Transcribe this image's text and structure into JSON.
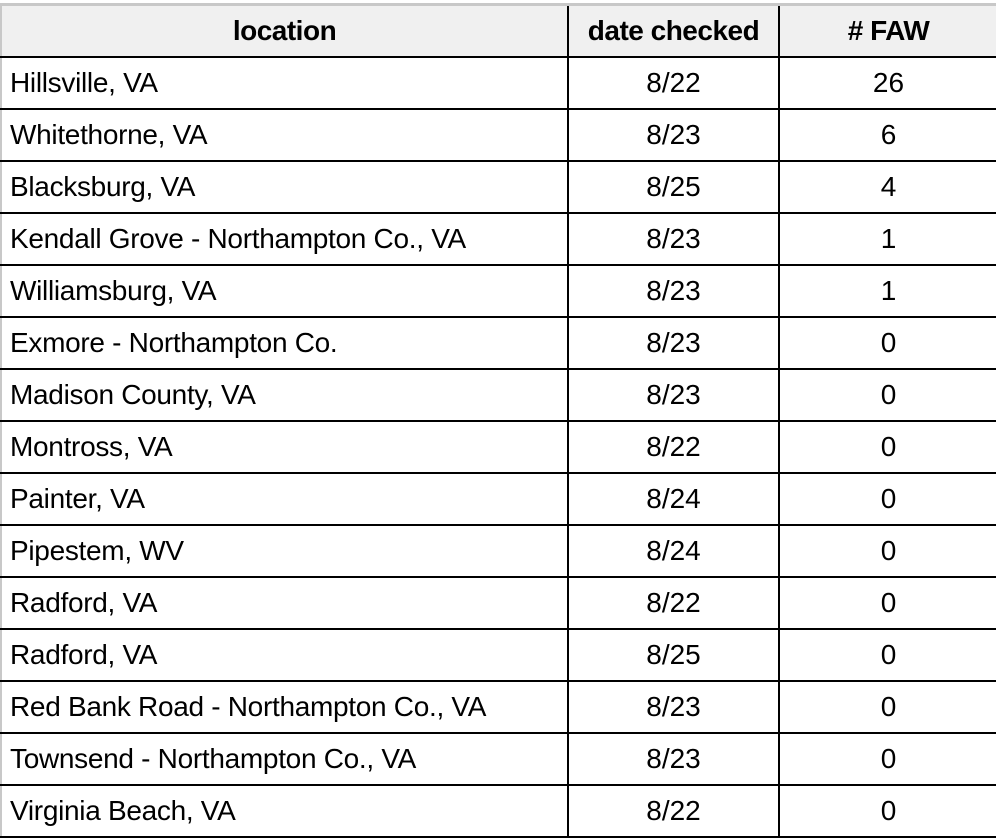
{
  "table": {
    "headers": [
      "location",
      "date checked",
      "# FAW"
    ],
    "rows": [
      [
        "Hillsville, VA",
        "8/22",
        "26"
      ],
      [
        "Whitethorne, VA",
        "8/23",
        "6"
      ],
      [
        "Blacksburg, VA",
        "8/25",
        "4"
      ],
      [
        "Kendall Grove - Northampton Co., VA",
        "8/23",
        "1"
      ],
      [
        "Williamsburg, VA",
        "8/23",
        "1"
      ],
      [
        "Exmore - Northampton Co.",
        "8/23",
        "0"
      ],
      [
        "Madison County, VA",
        "8/23",
        "0"
      ],
      [
        "Montross, VA",
        "8/22",
        "0"
      ],
      [
        "Painter, VA",
        "8/24",
        "0"
      ],
      [
        "Pipestem, WV",
        "8/24",
        "0"
      ],
      [
        "Radford, VA",
        "8/22",
        "0"
      ],
      [
        "Radford, VA",
        "8/25",
        "0"
      ],
      [
        "Red Bank Road - Northampton Co., VA",
        "8/23",
        "0"
      ],
      [
        "Townsend - Northampton Co., VA",
        "8/23",
        "0"
      ],
      [
        "Virginia Beach, VA",
        "8/22",
        "0"
      ]
    ]
  }
}
